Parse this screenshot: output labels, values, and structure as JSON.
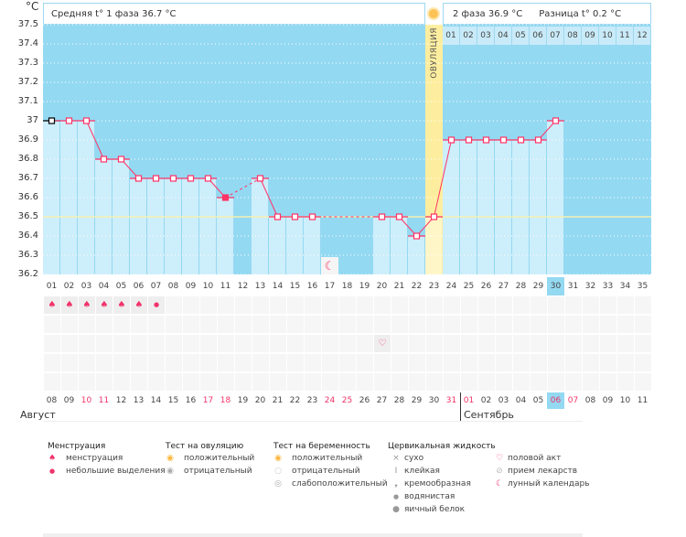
{
  "unit": "°C",
  "header": {
    "phase1": "Средняя t° 1 фаза 36.7 °C",
    "phase2": "2 фаза 36.9 °C",
    "diff": "Разница t° 0.2 °C"
  },
  "ovulation_label": "ОВУЛЯЦИЯ",
  "next_cycle_days": [
    "01",
    "02",
    "03",
    "04",
    "05",
    "06",
    "07",
    "08",
    "09",
    "10",
    "11",
    "12"
  ],
  "colors": {
    "background": "#94d9f2",
    "bar": "#cdeefb",
    "ovulation": "#fdee9f",
    "line": "#ff3366",
    "coverline": "#f6f0b0",
    "highlight": "#94d9f2"
  },
  "chart_data": {
    "type": "line",
    "ylim": [
      36.2,
      37.5
    ],
    "yticks": [
      "37.5",
      "37.4",
      "37.3",
      "37.2",
      "37.1",
      "37",
      "36.9",
      "36.8",
      "36.7",
      "36.6",
      "36.5",
      "36.4",
      "36.3",
      "36.2"
    ],
    "coverline": 36.5,
    "ovulation_day": 23,
    "x": [
      "01",
      "02",
      "03",
      "04",
      "05",
      "06",
      "07",
      "08",
      "09",
      "10",
      "11",
      "12",
      "13",
      "14",
      "15",
      "16",
      "17",
      "18",
      "19",
      "20",
      "21",
      "22",
      "23",
      "24",
      "25",
      "26",
      "27",
      "28",
      "29",
      "30",
      "31",
      "32",
      "33",
      "34",
      "35"
    ],
    "values": [
      37.0,
      37.0,
      37.0,
      36.8,
      36.8,
      36.7,
      36.7,
      36.7,
      36.7,
      36.7,
      36.6,
      null,
      36.7,
      36.5,
      36.5,
      36.5,
      null,
      null,
      null,
      36.5,
      36.5,
      36.4,
      36.5,
      36.9,
      36.9,
      36.9,
      36.9,
      36.9,
      36.9,
      37.0,
      null,
      null,
      null,
      null,
      null
    ],
    "current_day": "30",
    "moon_day": 17
  },
  "markers": {
    "menstruation_days": [
      1,
      2,
      3,
      4,
      5,
      6
    ],
    "spotting_days": [
      7
    ],
    "intercourse_days": [
      20
    ]
  },
  "dates": [
    "08",
    "09",
    "10",
    "11",
    "12",
    "13",
    "14",
    "15",
    "16",
    "17",
    "18",
    "19",
    "20",
    "21",
    "22",
    "23",
    "24",
    "25",
    "26",
    "27",
    "28",
    "29",
    "30",
    "31",
    "01",
    "02",
    "03",
    "04",
    "05",
    "06",
    "07",
    "08",
    "09",
    "10",
    "11"
  ],
  "red_dates": [
    2,
    3,
    9,
    10,
    16,
    17,
    23,
    24,
    29,
    30
  ],
  "today_date_index": 29,
  "months": {
    "first": "Август",
    "second": "Сентябрь"
  },
  "legend": {
    "menstruation": {
      "title": "Менструация",
      "items": [
        "менструация",
        "небольшие выделения"
      ]
    },
    "ovulation_test": {
      "title": "Тест на овуляцию",
      "items": [
        "положительный",
        "отрицательный"
      ]
    },
    "pregnancy_test": {
      "title": "Тест на беременность",
      "items": [
        "положительный",
        "отрицательный",
        "слабоположительный"
      ]
    },
    "cervical": {
      "title": "Цервикальная жидкость",
      "items": [
        "сухо",
        "клейкая",
        "кремообразная",
        "водянистая",
        "яичный белок"
      ]
    },
    "other": {
      "items": [
        "половой акт",
        "прием лекарств",
        "лунный календарь"
      ]
    }
  }
}
